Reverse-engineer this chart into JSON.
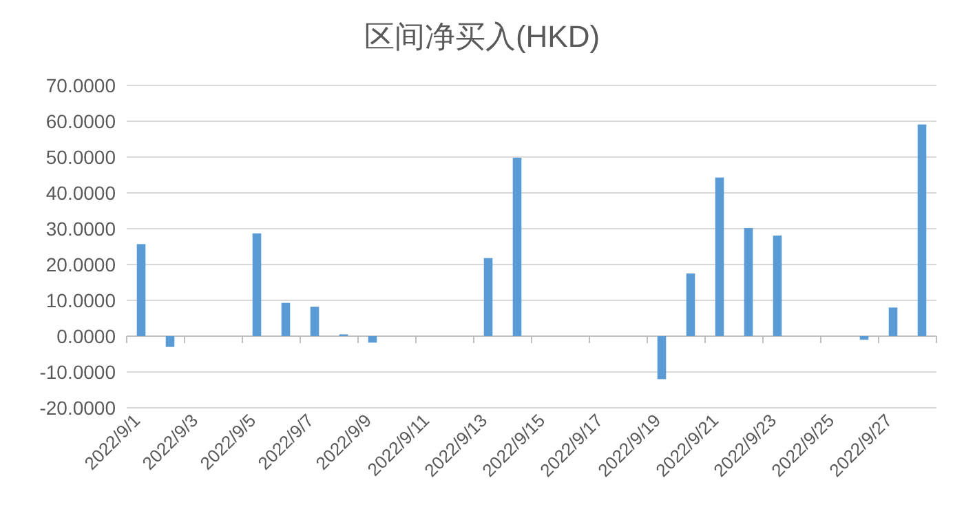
{
  "chart_data": {
    "type": "bar",
    "title": "区间净买入(HKD)",
    "categories": [
      "2022/9/1",
      null,
      "2022/9/3",
      null,
      "2022/9/5",
      null,
      "2022/9/7",
      null,
      "2022/9/9",
      null,
      "2022/9/11",
      null,
      "2022/9/13",
      null,
      "2022/9/15",
      null,
      "2022/9/17",
      null,
      "2022/9/19",
      null,
      "2022/9/21",
      null,
      "2022/9/23",
      null,
      "2022/9/25",
      null,
      "2022/9/27",
      null
    ],
    "series": [
      {
        "color": "#5b9bd5",
        "values": [
          25.7,
          -3,
          null,
          null,
          28.7,
          9.3,
          8.2,
          0.5,
          -1.8,
          null,
          null,
          null,
          21.8,
          49.8,
          null,
          null,
          null,
          null,
          -12,
          17.5,
          44.3,
          30.2,
          28.1,
          null,
          null,
          -1,
          8,
          59.1
        ]
      }
    ],
    "ylim": [
      -20,
      70
    ],
    "yticks": [
      {
        "value": -20,
        "label": "-20.0000"
      },
      {
        "value": -10,
        "label": "-10.0000"
      },
      {
        "value": 0,
        "label": "0.0000"
      },
      {
        "value": 10,
        "label": "10.0000"
      },
      {
        "value": 20,
        "label": "20.0000"
      },
      {
        "value": 30,
        "label": "30.0000"
      },
      {
        "value": 40,
        "label": "40.0000"
      },
      {
        "value": 50,
        "label": "50.0000"
      },
      {
        "value": 60,
        "label": "60.0000"
      },
      {
        "value": 70,
        "label": "70.0000"
      }
    ],
    "grid": "y"
  }
}
